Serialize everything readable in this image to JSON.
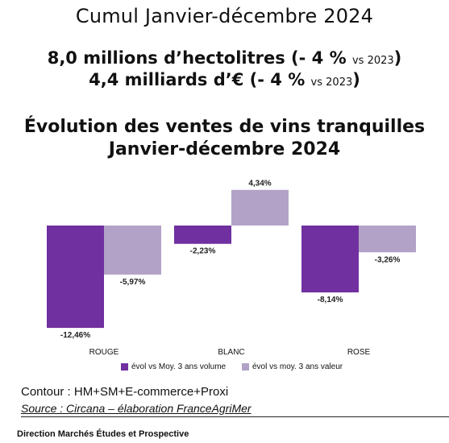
{
  "header": {
    "period_title": "Cumul Janvier-décembre 2024",
    "volume_main": "8,0 millions d’hectolitres (- 4 %",
    "volume_vs": "vs 2023",
    "volume_close": ")",
    "value_main": "4,4 milliards d’€ (- 4 %",
    "value_vs": "vs 2023",
    "value_close": ")"
  },
  "chart_data": {
    "type": "bar",
    "title_line_1": "Évolution des ventes de vins tranquilles",
    "title_line_2": "Janvier-décembre 2024",
    "categories": [
      "ROUGE",
      "BLANC",
      "ROSE"
    ],
    "series": [
      {
        "name": "évol vs Moy. 3 ans volume",
        "values": [
          -12.46,
          -2.23,
          -8.14
        ],
        "labels": [
          "-12,46%",
          "-2,23%",
          "-8,14%"
        ],
        "color": "#7030a0"
      },
      {
        "name": "évol vs moy. 3 ans valeur",
        "values": [
          -5.97,
          4.34,
          -3.26
        ],
        "labels": [
          "-5,97%",
          "4,34%",
          "-3,26%"
        ],
        "color": "#b3a2c7"
      }
    ],
    "legend_position": "bottom",
    "grid": false
  },
  "notes": {
    "contour": "Contour : HM+SM+E-commerce+Proxi",
    "source": "Source : Circana – élaboration FranceAgriMer"
  },
  "footer": {
    "text": "Direction Marchés Études et Prospective"
  }
}
